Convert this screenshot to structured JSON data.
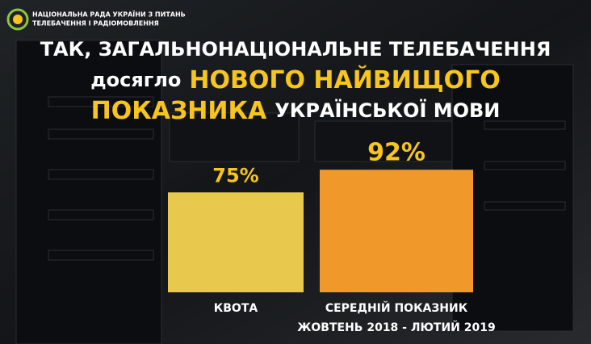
{
  "header": {
    "org_lines": [
      "НАЦІОНАЛЬНА РАДА УКРАЇНИ З ПИТАНЬ",
      "ТЕЛЕБАЧЕННЯ І РАДІОМОВЛЕННЯ"
    ]
  },
  "chart_data": {
    "type": "bar",
    "title_lines": [
      [
        {
          "text": "ТАК, ЗАГАЛЬНОНАЦІОНАЛЬНЕ ТЕЛЕБАЧЕННЯ",
          "highlight": false
        }
      ],
      [
        {
          "text": "досягло",
          "highlight": false
        },
        {
          "text": "НОВОГО НАЙВИЩОГО",
          "highlight": true
        }
      ],
      [
        {
          "text": "ПОКАЗНИКА",
          "highlight": true
        },
        {
          "text": "УКРАЇНСЬКОЇ МОВИ",
          "highlight": false
        }
      ]
    ],
    "categories": [
      [
        "КВОТА"
      ],
      [
        "СЕРЕДНІЙ ПОКАЗНИК",
        "ЖОВТЕНЬ 2018 - ЛЮТИЙ 2019"
      ]
    ],
    "values": [
      75,
      92
    ],
    "value_labels": [
      "75%",
      "92%"
    ],
    "colors": [
      "#e9c94d",
      "#f0992a"
    ],
    "highlight_color": "#f7c51e",
    "ylim": [
      0,
      100
    ]
  }
}
